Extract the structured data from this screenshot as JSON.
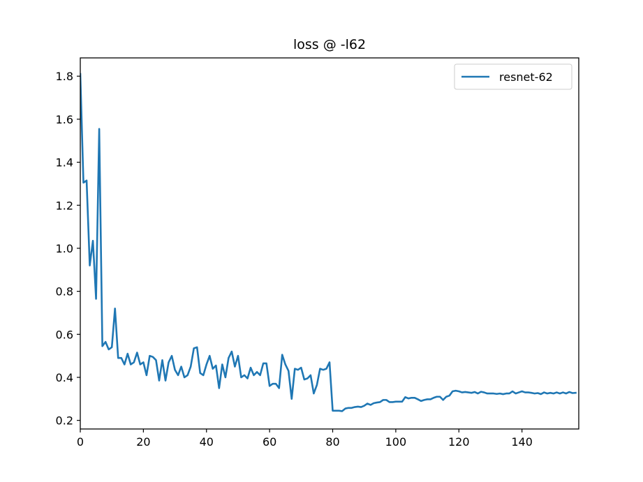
{
  "chart_data": {
    "type": "line",
    "title": "loss @ -l62",
    "xlabel": "",
    "ylabel": "",
    "xlim": [
      0,
      158
    ],
    "ylim": [
      0.16,
      1.885
    ],
    "xticks": [
      0,
      20,
      40,
      60,
      80,
      100,
      120,
      140
    ],
    "yticks": [
      0.2,
      0.4,
      0.6,
      0.8,
      1.0,
      1.2,
      1.4,
      1.6,
      1.8
    ],
    "ytick_labels": [
      "0.2",
      "0.4",
      "0.6",
      "0.8",
      "1.0",
      "1.2",
      "1.4",
      "1.6",
      "1.8"
    ],
    "grid": false,
    "legend": "top-right",
    "series": [
      {
        "name": "resnet-62",
        "color": "#1f77b4",
        "x": [
          0,
          1,
          2,
          3,
          4,
          5,
          6,
          7,
          8,
          9,
          10,
          11,
          12,
          13,
          14,
          15,
          16,
          17,
          18,
          19,
          20,
          21,
          22,
          23,
          24,
          25,
          26,
          27,
          28,
          29,
          30,
          31,
          32,
          33,
          34,
          35,
          36,
          37,
          38,
          39,
          40,
          41,
          42,
          43,
          44,
          45,
          46,
          47,
          48,
          49,
          50,
          51,
          52,
          53,
          54,
          55,
          56,
          57,
          58,
          59,
          60,
          61,
          62,
          63,
          64,
          65,
          66,
          67,
          68,
          69,
          70,
          71,
          72,
          73,
          74,
          75,
          76,
          77,
          78,
          79,
          80,
          81,
          82,
          83,
          84,
          85,
          86,
          87,
          88,
          89,
          90,
          91,
          92,
          93,
          94,
          95,
          96,
          97,
          98,
          99,
          100,
          101,
          102,
          103,
          104,
          105,
          106,
          107,
          108,
          109,
          110,
          111,
          112,
          113,
          114,
          115,
          116,
          117,
          118,
          119,
          120,
          121,
          122,
          123,
          124,
          125,
          126,
          127,
          128,
          129,
          130,
          131,
          132,
          133,
          134,
          135,
          136,
          137,
          138,
          139,
          140,
          141,
          142,
          143,
          144,
          145,
          146,
          147,
          148,
          149,
          150,
          151,
          152,
          153,
          154,
          155,
          156,
          157
        ],
        "values": [
          1.81,
          1.305,
          1.315,
          0.92,
          1.035,
          0.765,
          1.555,
          0.545,
          0.565,
          0.53,
          0.54,
          0.72,
          0.49,
          0.49,
          0.46,
          0.51,
          0.46,
          0.47,
          0.515,
          0.46,
          0.47,
          0.41,
          0.5,
          0.495,
          0.48,
          0.385,
          0.48,
          0.385,
          0.47,
          0.5,
          0.435,
          0.41,
          0.45,
          0.4,
          0.41,
          0.45,
          0.535,
          0.54,
          0.42,
          0.41,
          0.46,
          0.5,
          0.44,
          0.455,
          0.35,
          0.46,
          0.4,
          0.49,
          0.52,
          0.45,
          0.5,
          0.4,
          0.41,
          0.395,
          0.445,
          0.41,
          0.425,
          0.41,
          0.465,
          0.465,
          0.36,
          0.37,
          0.37,
          0.35,
          0.505,
          0.46,
          0.43,
          0.3,
          0.44,
          0.435,
          0.445,
          0.39,
          0.395,
          0.41,
          0.325,
          0.365,
          0.44,
          0.435,
          0.44,
          0.47,
          0.245,
          0.245,
          0.245,
          0.243,
          0.255,
          0.258,
          0.258,
          0.262,
          0.264,
          0.262,
          0.268,
          0.278,
          0.272,
          0.28,
          0.283,
          0.285,
          0.295,
          0.295,
          0.285,
          0.285,
          0.287,
          0.287,
          0.287,
          0.308,
          0.302,
          0.305,
          0.305,
          0.298,
          0.29,
          0.295,
          0.298,
          0.298,
          0.305,
          0.31,
          0.31,
          0.295,
          0.31,
          0.315,
          0.335,
          0.338,
          0.335,
          0.33,
          0.332,
          0.33,
          0.328,
          0.332,
          0.325,
          0.333,
          0.33,
          0.325,
          0.325,
          0.325,
          0.323,
          0.325,
          0.322,
          0.325,
          0.325,
          0.335,
          0.325,
          0.33,
          0.335,
          0.33,
          0.33,
          0.328,
          0.325,
          0.327,
          0.322,
          0.33,
          0.325,
          0.328,
          0.325,
          0.33,
          0.325,
          0.33,
          0.325,
          0.332,
          0.327,
          0.328
        ]
      }
    ]
  }
}
